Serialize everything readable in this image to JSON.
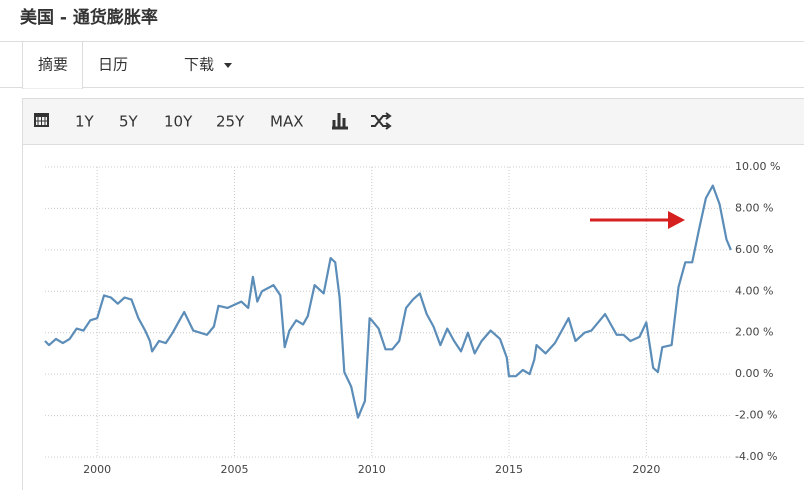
{
  "header": {
    "title": "美国 - 通货膨胀率"
  },
  "tabs": [
    "摘要",
    "日历",
    "下载"
  ],
  "toolbar": [
    "1Y",
    "5Y",
    "10Y",
    "25Y",
    "MAX"
  ],
  "chart_data": {
    "type": "line",
    "color": "#5b8db8",
    "grid": true,
    "x": [
      1998.1,
      1998.25,
      1998.5,
      1998.75,
      1999.0,
      1999.25,
      1999.5,
      1999.75,
      2000.0,
      2000.25,
      2000.5,
      2000.75,
      2001.0,
      2001.25,
      2001.5,
      2001.75,
      2001.92,
      2002.0,
      2002.25,
      2002.5,
      2002.75,
      2003.0,
      2003.17,
      2003.5,
      2003.75,
      2004.0,
      2004.25,
      2004.42,
      2004.75,
      2004.92,
      2005.25,
      2005.5,
      2005.67,
      2005.83,
      2006.0,
      2006.42,
      2006.67,
      2006.83,
      2007.0,
      2007.25,
      2007.5,
      2007.67,
      2007.92,
      2008.25,
      2008.5,
      2008.67,
      2008.83,
      2009.0,
      2009.25,
      2009.5,
      2009.75,
      2009.92,
      2010.0,
      2010.25,
      2010.5,
      2010.75,
      2011.0,
      2011.25,
      2011.5,
      2011.75,
      2012.0,
      2012.25,
      2012.5,
      2012.75,
      2013.0,
      2013.25,
      2013.5,
      2013.75,
      2014.0,
      2014.33,
      2014.67,
      2014.92,
      2015.0,
      2015.25,
      2015.5,
      2015.75,
      2015.92,
      2016.0,
      2016.33,
      2016.67,
      2016.92,
      2017.17,
      2017.42,
      2017.75,
      2018.0,
      2018.5,
      2018.75,
      2018.92,
      2019.17,
      2019.42,
      2019.75,
      2020.0,
      2020.25,
      2020.42,
      2020.58,
      2020.92,
      2021.17,
      2021.42,
      2021.67,
      2021.92,
      2022.17,
      2022.42,
      2022.67,
      2022.92,
      2023.08
    ],
    "values": [
      1.6,
      1.4,
      1.7,
      1.5,
      1.7,
      2.2,
      2.1,
      2.6,
      2.7,
      3.8,
      3.7,
      3.4,
      3.7,
      3.6,
      2.7,
      2.1,
      1.6,
      1.1,
      1.6,
      1.5,
      2.0,
      2.6,
      3.0,
      2.1,
      2.0,
      1.9,
      2.3,
      3.3,
      3.2,
      3.3,
      3.5,
      3.2,
      4.7,
      3.5,
      4.0,
      4.3,
      3.8,
      1.3,
      2.1,
      2.6,
      2.4,
      2.8,
      4.3,
      3.9,
      5.6,
      5.4,
      3.7,
      0.1,
      -0.6,
      -2.1,
      -1.3,
      2.7,
      2.6,
      2.2,
      1.2,
      1.2,
      1.6,
      3.2,
      3.6,
      3.9,
      2.9,
      2.3,
      1.4,
      2.2,
      1.6,
      1.1,
      2.0,
      1.0,
      1.6,
      2.1,
      1.7,
      0.8,
      -0.1,
      -0.1,
      0.2,
      0.0,
      0.7,
      1.4,
      1.0,
      1.5,
      2.1,
      2.7,
      1.6,
      2.0,
      2.1,
      2.9,
      2.3,
      1.9,
      1.9,
      1.6,
      1.8,
      2.5,
      0.3,
      0.1,
      1.3,
      1.4,
      4.2,
      5.4,
      5.4,
      7.0,
      8.5,
      9.1,
      8.2,
      6.5,
      6.0
    ],
    "xlim": [
      1998.1,
      2023.12
    ],
    "xticks": [
      2000,
      2005,
      2010,
      2015,
      2020
    ],
    "ylim": [
      -4,
      10
    ],
    "yticks": [
      {
        "value": -4,
        "label": "-4.00 %"
      },
      {
        "value": -2,
        "label": "-2.00 %"
      },
      {
        "value": 0,
        "label": "0.00 %"
      },
      {
        "value": 2,
        "label": "2.00 %"
      },
      {
        "value": 4,
        "label": "4.00 %"
      },
      {
        "value": 6,
        "label": "6.00 %"
      },
      {
        "value": 8,
        "label": "8.00 %"
      },
      {
        "value": 10,
        "label": "10.00 %"
      }
    ]
  }
}
